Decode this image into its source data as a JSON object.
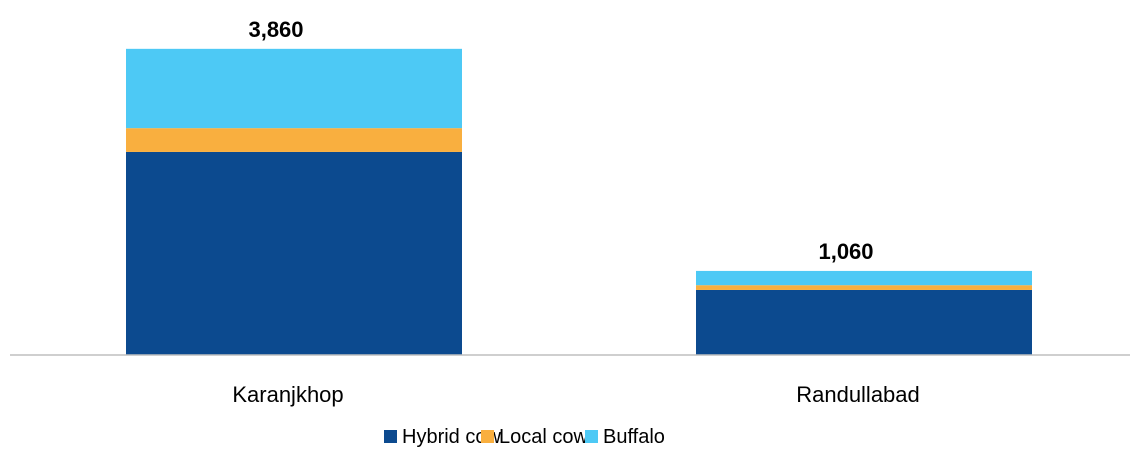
{
  "chart_data": {
    "type": "bar",
    "stacked": true,
    "categories": [
      "Karanjkhop",
      "Randullabad"
    ],
    "series": [
      {
        "name": "Hybrid cow",
        "color": "#0C4A8F",
        "values": [
          2560,
          820
        ]
      },
      {
        "name": "Local cow",
        "color": "#F9AF3F",
        "values": [
          300,
          60
        ]
      },
      {
        "name": "Buffalo",
        "color": "#4DC9F5",
        "values": [
          1000,
          180
        ]
      }
    ],
    "totals": [
      3860,
      1060
    ],
    "total_labels": [
      "3,860",
      "1,060"
    ],
    "ylim": [
      0,
      4400
    ],
    "grid": false,
    "legend_position": "bottom",
    "title": "",
    "xlabel": "",
    "ylabel": ""
  }
}
